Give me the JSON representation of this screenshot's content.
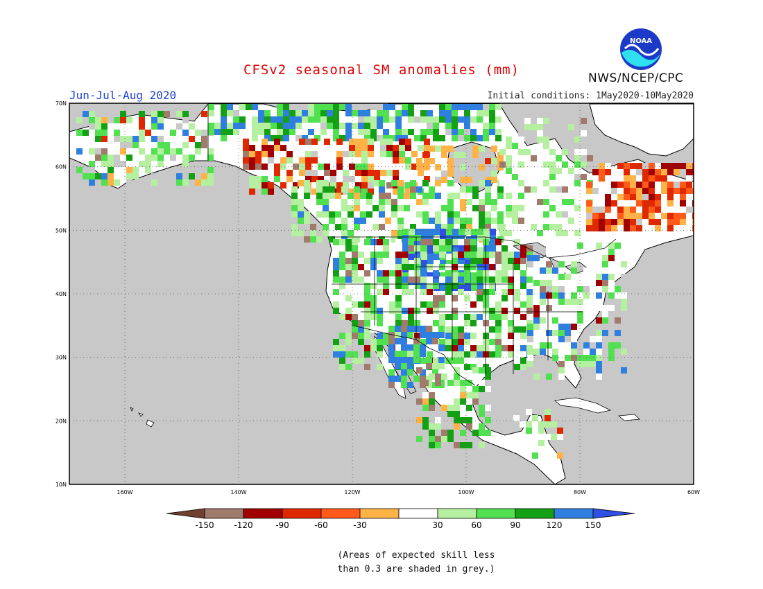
{
  "title": "CFSv2 seasonal SM anomalies (mm)",
  "agency": "NWS/NCEP/CPC",
  "logo_text": "NOAA",
  "season": "Jun-Jul-Aug 2020",
  "initial_conditions": "Initial conditions: 1May2020-10May2020",
  "axes": {
    "lat_labels": [
      "70N",
      "60N",
      "50N",
      "40N",
      "30N",
      "20N",
      "10N"
    ],
    "lon_labels": [
      "160W",
      "140W",
      "120W",
      "100W",
      "80W",
      "60W"
    ]
  },
  "legend": {
    "ticks": [
      "-150",
      "-120",
      "-90",
      "-60",
      "-30",
      "30",
      "60",
      "90",
      "120",
      "150"
    ],
    "colors": [
      "#704030",
      "#a07a6a",
      "#a00000",
      "#e02800",
      "#ff5a1a",
      "#ffb347",
      "#ffffff",
      "#b4f0a0",
      "#50e050",
      "#14a014",
      "#2f7fe0",
      "#2f50e0"
    ]
  },
  "note_line1": "(Areas of expected skill less",
  "note_line2": "than 0.3 are shaded in grey.)"
}
